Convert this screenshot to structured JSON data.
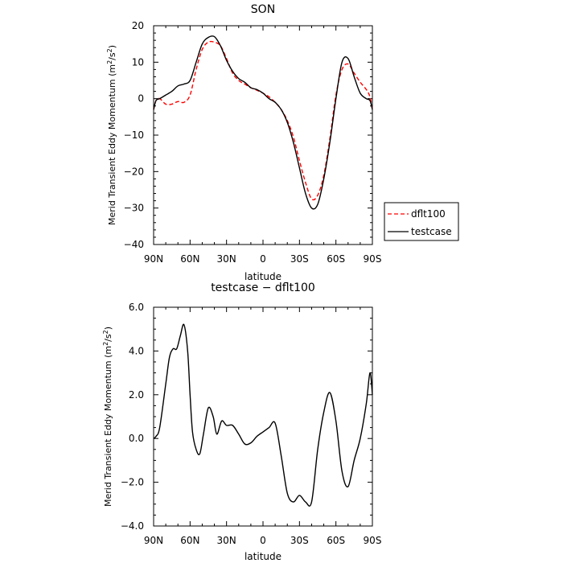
{
  "chart_data": [
    {
      "type": "line",
      "title": "SON",
      "xlabel": "latitude",
      "ylabel": "Merid Transient Eddy Momentum (m²/s²)",
      "ylabel_parts": {
        "main": "Merid Transient Eddy Momentum (m",
        "sup1": "2",
        "mid": "/s",
        "sup2": "2",
        "end": ")"
      },
      "x_ticks": [
        {
          "lat": 90,
          "label": "90N"
        },
        {
          "lat": 60,
          "label": "60N"
        },
        {
          "lat": 30,
          "label": "30N"
        },
        {
          "lat": 0,
          "label": "0"
        },
        {
          "lat": -30,
          "label": "30S"
        },
        {
          "lat": -60,
          "label": "60S"
        },
        {
          "lat": -90,
          "label": "90S"
        }
      ],
      "xlim": [
        90,
        -90
      ],
      "ylim": [
        -40,
        20
      ],
      "y_ticks": [
        {
          "value": 20,
          "label": "20"
        },
        {
          "value": 10,
          "label": "10"
        },
        {
          "value": 0,
          "label": "0"
        },
        {
          "value": -10,
          "label": "−10"
        },
        {
          "value": -20,
          "label": "−20"
        },
        {
          "value": -30,
          "label": "−30"
        },
        {
          "value": -40,
          "label": "−40"
        }
      ],
      "grid": false,
      "legend": {
        "placement": "right",
        "entries": [
          {
            "label": "dflt100",
            "color": "#ff0000",
            "dash": true
          },
          {
            "label": "testcase",
            "color": "#000000",
            "dash": false
          }
        ]
      },
      "series": [
        {
          "name": "dflt100",
          "color": "#ff0000",
          "dash": true,
          "x": [
            90,
            88,
            85,
            80,
            75,
            70,
            65,
            60,
            55,
            50,
            45,
            40,
            35,
            30,
            25,
            20,
            15,
            10,
            5,
            0,
            -5,
            -10,
            -15,
            -20,
            -25,
            -30,
            -35,
            -40,
            -45,
            -50,
            -55,
            -60,
            -65,
            -70,
            -75,
            -80,
            -85,
            -88,
            -90
          ],
          "y": [
            -3,
            -0.5,
            0,
            -1.5,
            -1.5,
            -0.8,
            -1,
            1,
            8,
            13.5,
            15.5,
            15.5,
            14.5,
            11,
            7,
            5,
            4,
            3,
            2.3,
            1.5,
            0.5,
            -1,
            -3,
            -6,
            -10.5,
            -17,
            -23,
            -27.5,
            -26.5,
            -21,
            -11,
            1,
            8,
            9.5,
            7,
            4.5,
            2.5,
            0.5,
            -3
          ]
        },
        {
          "name": "testcase",
          "color": "#000000",
          "dash": false,
          "x": [
            90,
            88,
            85,
            80,
            75,
            70,
            65,
            60,
            55,
            50,
            45,
            40,
            35,
            30,
            25,
            20,
            15,
            10,
            5,
            0,
            -5,
            -10,
            -15,
            -20,
            -25,
            -30,
            -35,
            -40,
            -45,
            -50,
            -55,
            -60,
            -65,
            -70,
            -75,
            -80,
            -85,
            -88,
            -90
          ],
          "y": [
            -3,
            -0.5,
            0,
            1,
            2,
            3.5,
            4,
            5,
            10,
            15,
            16.8,
            17,
            14.5,
            10.5,
            7.5,
            5.5,
            4.5,
            3,
            2.5,
            1.5,
            0,
            -1,
            -3,
            -6.5,
            -12,
            -19,
            -26,
            -30,
            -29,
            -22,
            -12,
            0,
            10,
            11,
            6,
            1.5,
            0,
            -0.5,
            -3
          ]
        }
      ]
    },
    {
      "type": "line",
      "title": "testcase − dflt100",
      "xlabel": "latitude",
      "ylabel": "Merid Transient Eddy Momentum (m²/s²)",
      "ylabel_parts": {
        "main": "Merid Transient Eddy Momentum (m",
        "sup1": "2",
        "mid": "/s",
        "sup2": "2",
        "end": ")"
      },
      "x_ticks": [
        {
          "lat": 90,
          "label": "90N"
        },
        {
          "lat": 60,
          "label": "60N"
        },
        {
          "lat": 30,
          "label": "30N"
        },
        {
          "lat": 0,
          "label": "0"
        },
        {
          "lat": -30,
          "label": "30S"
        },
        {
          "lat": -60,
          "label": "60S"
        },
        {
          "lat": -90,
          "label": "90S"
        }
      ],
      "xlim": [
        90,
        -90
      ],
      "ylim": [
        -4,
        6
      ],
      "y_ticks": [
        {
          "value": 6,
          "label": "6.0"
        },
        {
          "value": 4,
          "label": "4.0"
        },
        {
          "value": 2,
          "label": "2.0"
        },
        {
          "value": 0,
          "label": "0.0"
        },
        {
          "value": -2,
          "label": "−2.0"
        },
        {
          "value": -4,
          "label": "−4.0"
        }
      ],
      "grid": false,
      "series": [
        {
          "name": "",
          "color": "#000000",
          "dash": false,
          "x": [
            90,
            88,
            85,
            80,
            77,
            74,
            71,
            68,
            65,
            62,
            60,
            58,
            55,
            52,
            49,
            45,
            41,
            38,
            34,
            30,
            25,
            20,
            15,
            10,
            5,
            0,
            -5,
            -10,
            -15,
            -20,
            -25,
            -30,
            -35,
            -40,
            -45,
            -50,
            -55,
            -60,
            -65,
            -70,
            -75,
            -80,
            -85,
            -88,
            -90
          ],
          "y": [
            0,
            0.1,
            0.5,
            2.5,
            3.7,
            4.1,
            4.1,
            4.7,
            5.2,
            4,
            2,
            0.3,
            -0.5,
            -0.7,
            0.2,
            1.4,
            1,
            0.2,
            0.8,
            0.6,
            0.6,
            0.2,
            -0.25,
            -0.2,
            0.1,
            0.3,
            0.5,
            0.7,
            -0.8,
            -2.5,
            -2.9,
            -2.6,
            -2.9,
            -2.9,
            -0.5,
            1.2,
            2.1,
            0.8,
            -1.5,
            -2.2,
            -1,
            0,
            1.6,
            3,
            2
          ]
        }
      ]
    }
  ]
}
